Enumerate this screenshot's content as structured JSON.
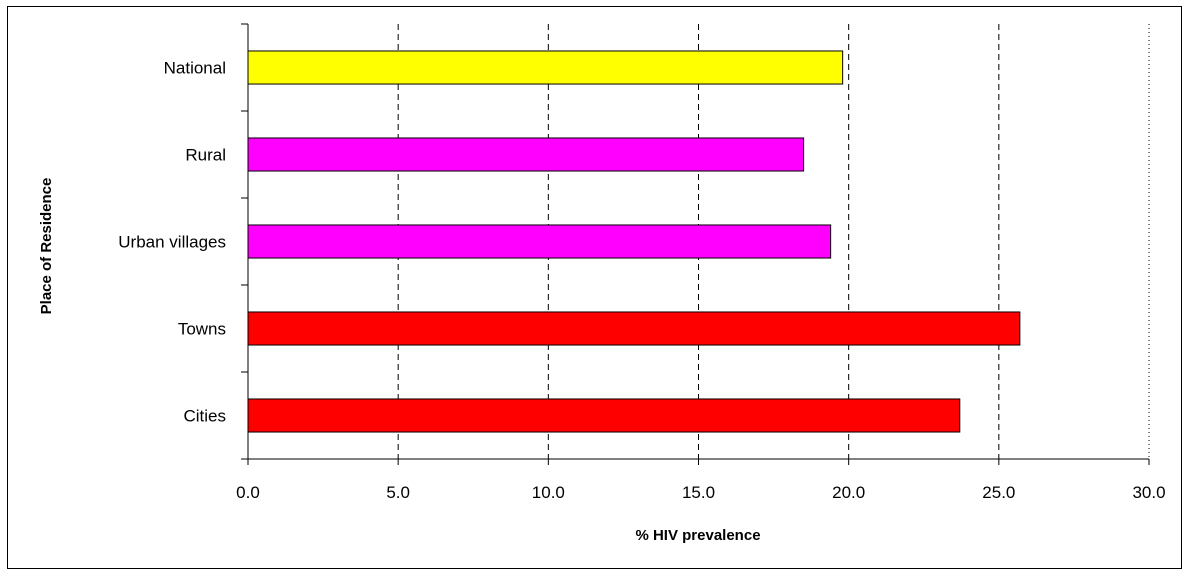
{
  "chart_data": {
    "type": "bar",
    "orientation": "horizontal",
    "title": "",
    "xlabel": "% HIV prevalence",
    "ylabel": "Place of Residence",
    "categories": [
      "National",
      "Rural",
      "Urban villages",
      "Towns",
      "Cities"
    ],
    "values": [
      19.8,
      18.5,
      19.4,
      25.7,
      23.7
    ],
    "bar_colors": [
      "#FFFF00",
      "#FF00FF",
      "#FF00FF",
      "#FF0000",
      "#FF0000"
    ],
    "xlim": [
      0,
      30
    ],
    "xticks": [
      "0.0",
      "5.0",
      "10.0",
      "15.0",
      "20.0",
      "25.0",
      "30.0"
    ],
    "grid": "vertical dashed",
    "legend": "none"
  }
}
